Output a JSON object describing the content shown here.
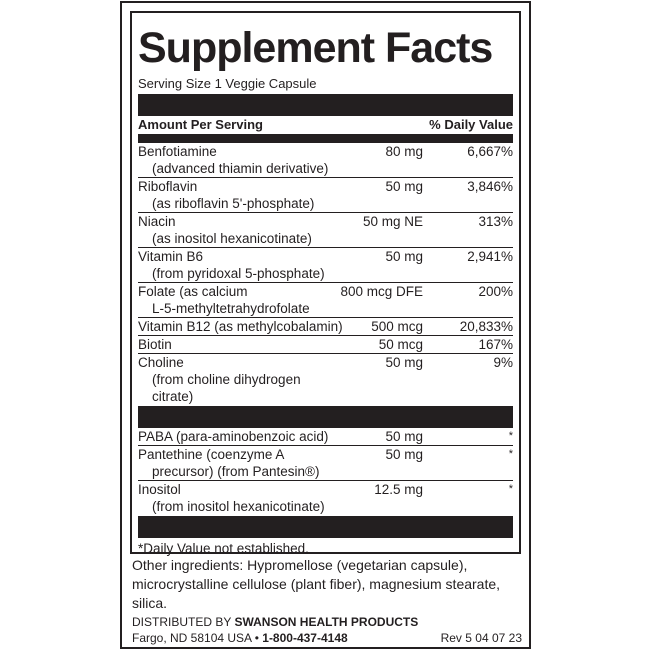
{
  "title": "Supplement Facts",
  "serving_size": "Serving Size 1 Veggie Capsule",
  "header": {
    "amount": "Amount Per Serving",
    "dv": "% Daily Value"
  },
  "rows": [
    {
      "name": "Benfotiamine",
      "sub": "(advanced thiamin derivative)",
      "amount": "80 mg",
      "dv": "6,667%"
    },
    {
      "name": "Riboflavin",
      "sub": "(as riboflavin 5'-phosphate)",
      "amount": "50 mg",
      "dv": "3,846%"
    },
    {
      "name": "Niacin",
      "sub": "(as inositol hexanicotinate)",
      "amount": "50 mg NE",
      "dv": "313%"
    },
    {
      "name": "Vitamin B6",
      "sub": "(from pyridoxal 5-phosphate)",
      "amount": "50 mg",
      "dv": "2,941%"
    },
    {
      "name": "Folate (as calcium",
      "sub": "L-5-methyltetrahydrofolate",
      "amount": "800 mcg DFE",
      "dv": "200%"
    },
    {
      "name": "Vitamin B12 (as methylcobalamin)",
      "amount": "500 mcg",
      "dv": "20,833%"
    },
    {
      "name": "Biotin",
      "amount": "50 mcg",
      "dv": "167%"
    },
    {
      "name": "Choline",
      "sub": "(from choline dihydrogen citrate)",
      "amount": "50 mg",
      "dv": "9%"
    }
  ],
  "rows2": [
    {
      "name": "PABA (para-aminobenzoic acid)",
      "amount": "50 mg",
      "dv": "*"
    },
    {
      "name": "Pantethine (coenzyme A",
      "sub": "precursor) (from Pantesin®)",
      "amount": "50 mg",
      "dv": "*"
    },
    {
      "name": "Inositol",
      "sub": "(from inositol hexanicotinate)",
      "amount": "12.5 mg",
      "dv": "*"
    }
  ],
  "footnote": "*Daily Value not established.",
  "other_ingredients": "Other ingredients: Hypromellose (vegetarian capsule), microcrystalline cellulose (plant fiber), magnesium stearate, silica.",
  "distributor": {
    "prefix": "DISTRIBUTED BY ",
    "name": "SWANSON HEALTH PRODUCTS",
    "address": "Fargo, ND 58104 USA • ",
    "phone": "1-800-437-4148",
    "rev": "Rev 5 04 07 23"
  }
}
